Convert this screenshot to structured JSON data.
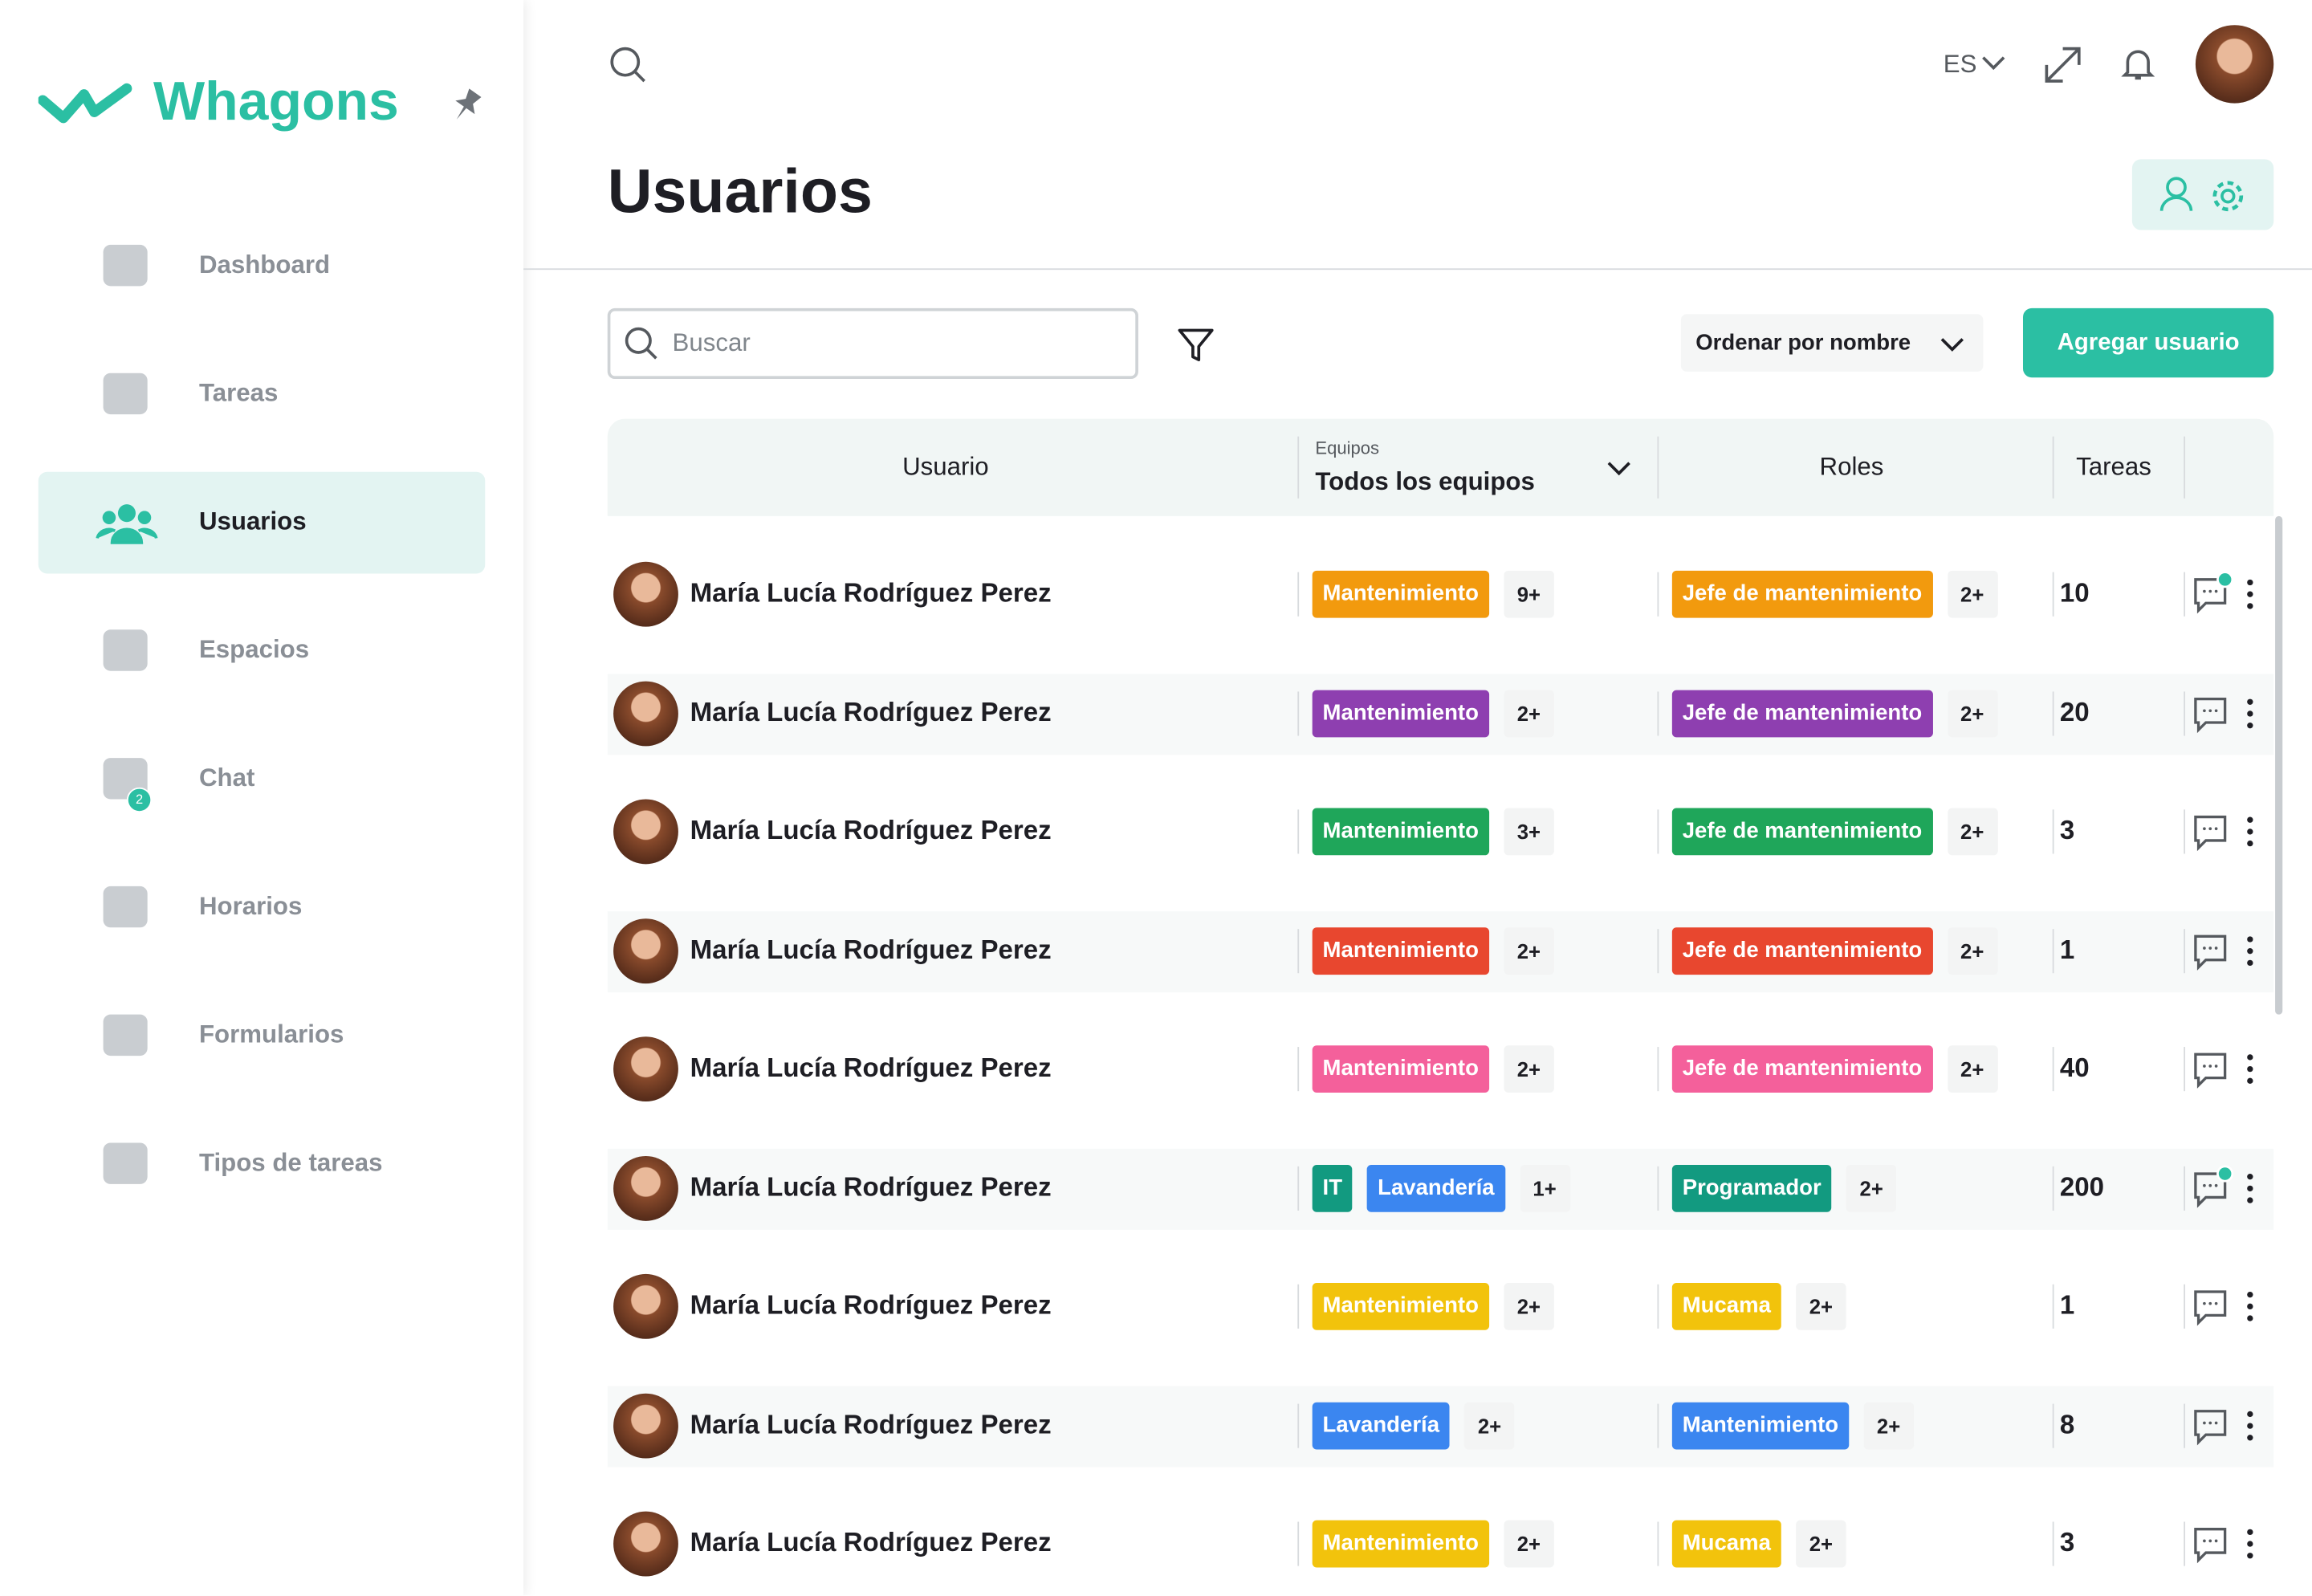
{
  "sidebar": {
    "logo": "Whagons",
    "items": [
      {
        "label": "Dashboard"
      },
      {
        "label": "Tareas"
      },
      {
        "label": "Usuarios",
        "active": true
      },
      {
        "label": "Espacios"
      },
      {
        "label": "Chat",
        "badge": "2"
      },
      {
        "label": "Horarios"
      },
      {
        "label": "Formularios"
      },
      {
        "label": "Tipos de tareas"
      }
    ]
  },
  "header": {
    "language": "ES",
    "title": "Usuarios"
  },
  "toolbar": {
    "search_placeholder": "Buscar",
    "sort": "Ordenar por nombre",
    "add_button": "Agregar usuario"
  },
  "table": {
    "columns": {
      "user": "Usuario",
      "teams_caption": "Equipos",
      "teams_filter": "Todos los equipos",
      "roles": "Roles",
      "tasks": "Tareas"
    },
    "rows": [
      {
        "name": "María Lucía Rodríguez Perez",
        "teams": [
          {
            "label": "Mantenimiento",
            "color": "#f29a0e"
          }
        ],
        "teams_more": "9+",
        "roles": [
          {
            "label": "Jefe de mantenimiento",
            "color": "#f29a0e"
          }
        ],
        "roles_more": "2+",
        "tasks": "10",
        "unread": true
      },
      {
        "name": "María Lucía Rodríguez Perez",
        "teams": [
          {
            "label": "Mantenimiento",
            "color": "#8e3fb0"
          }
        ],
        "teams_more": "2+",
        "roles": [
          {
            "label": "Jefe de mantenimiento",
            "color": "#8e3fb0"
          }
        ],
        "roles_more": "2+",
        "tasks": "20",
        "unread": false
      },
      {
        "name": "María Lucía Rodríguez Perez",
        "teams": [
          {
            "label": "Mantenimiento",
            "color": "#1fa65a"
          }
        ],
        "teams_more": "3+",
        "roles": [
          {
            "label": "Jefe de mantenimiento",
            "color": "#1fa65a"
          }
        ],
        "roles_more": "2+",
        "tasks": "3",
        "unread": false
      },
      {
        "name": "María Lucía Rodríguez Perez",
        "teams": [
          {
            "label": "Mantenimiento",
            "color": "#e8472f"
          }
        ],
        "teams_more": "2+",
        "roles": [
          {
            "label": "Jefe de mantenimiento",
            "color": "#e8472f"
          }
        ],
        "roles_more": "2+",
        "tasks": "1",
        "unread": false
      },
      {
        "name": "María Lucía Rodríguez Perez",
        "teams": [
          {
            "label": "Mantenimiento",
            "color": "#f4609b"
          }
        ],
        "teams_more": "2+",
        "roles": [
          {
            "label": "Jefe de mantenimiento",
            "color": "#f4609b"
          }
        ],
        "roles_more": "2+",
        "tasks": "40",
        "unread": false
      },
      {
        "name": "María Lucía Rodríguez Perez",
        "teams": [
          {
            "label": "IT",
            "color": "#129a80"
          },
          {
            "label": "Lavandería",
            "color": "#3b86f0"
          }
        ],
        "teams_more": "1+",
        "roles": [
          {
            "label": "Programador",
            "color": "#129a80"
          }
        ],
        "roles_more": "2+",
        "tasks": "200",
        "unread": true
      },
      {
        "name": "María Lucía Rodríguez Perez",
        "teams": [
          {
            "label": "Mantenimiento",
            "color": "#f2c30c"
          }
        ],
        "teams_more": "2+",
        "roles": [
          {
            "label": "Mucama",
            "color": "#f2c30c"
          }
        ],
        "roles_more": "2+",
        "tasks": "1",
        "unread": false
      },
      {
        "name": "María Lucía Rodríguez Perez",
        "teams": [
          {
            "label": "Lavandería",
            "color": "#3b86f0"
          }
        ],
        "teams_more": "2+",
        "roles": [
          {
            "label": "Mantenimiento",
            "color": "#3b86f0"
          }
        ],
        "roles_more": "2+",
        "tasks": "8",
        "unread": false
      },
      {
        "name": "María Lucía Rodríguez Perez",
        "teams": [
          {
            "label": "Mantenimiento",
            "color": "#f2c30c"
          }
        ],
        "teams_more": "2+",
        "roles": [
          {
            "label": "Mucama",
            "color": "#f2c30c"
          }
        ],
        "roles_more": "2+",
        "tasks": "3",
        "unread": false
      }
    ]
  }
}
